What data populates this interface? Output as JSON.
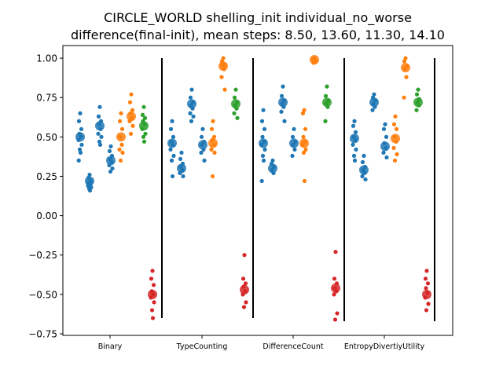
{
  "chart_data": {
    "type": "scatter",
    "title_lines": [
      "CIRCLE_WORLD shelling_init individual_no_worse",
      "difference(final-init), mean steps: 8.50, 13.60, 11.30, 14.10"
    ],
    "xlabel": "",
    "ylabel": "",
    "ylim": [
      -0.76,
      1.08
    ],
    "yticks": [
      -0.75,
      -0.5,
      -0.25,
      0.0,
      0.25,
      0.5,
      0.75,
      1.0
    ],
    "ytick_labels": [
      "−0.75",
      "−0.50",
      "−0.25",
      "0.00",
      "0.25",
      "0.50",
      "0.75",
      "1.00"
    ],
    "categories": [
      "Binary",
      "TypeCounting",
      "DifferenceCount",
      "EntropyDivertiyUtility"
    ],
    "colors": {
      "blue": "#1f77b4",
      "orange": "#ff7f0e",
      "green": "#2ca02c",
      "red": "#d62728"
    },
    "series": [
      {
        "category": "Binary",
        "strips": [
          {
            "color": "blue",
            "mean": 0.5,
            "points": [
              0.65,
              0.6,
              0.55,
              0.52,
              0.5,
              0.48,
              0.45,
              0.42,
              0.4,
              0.35
            ]
          },
          {
            "color": "blue",
            "mean": 0.22,
            "points": [
              0.26,
              0.24,
              0.22,
              0.21,
              0.2,
              0.19,
              0.18,
              0.17,
              0.16
            ]
          },
          {
            "color": "blue",
            "mean": 0.57,
            "points": [
              0.69,
              0.63,
              0.6,
              0.58,
              0.55,
              0.52,
              0.5,
              0.47,
              0.45
            ]
          },
          {
            "color": "blue",
            "mean": 0.35,
            "points": [
              0.44,
              0.41,
              0.38,
              0.36,
              0.34,
              0.32,
              0.3,
              0.28
            ]
          },
          {
            "color": "orange",
            "mean": 0.5,
            "points": [
              0.65,
              0.6,
              0.55,
              0.5,
              0.45,
              0.42,
              0.4,
              0.35
            ]
          },
          {
            "color": "orange",
            "mean": 0.63,
            "points": [
              0.77,
              0.72,
              0.67,
              0.65,
              0.62,
              0.6,
              0.57,
              0.52
            ]
          },
          {
            "color": "green",
            "mean": 0.57,
            "points": [
              0.69,
              0.64,
              0.62,
              0.6,
              0.58,
              0.55,
              0.52,
              0.5,
              0.47
            ]
          },
          {
            "color": "red",
            "mean": -0.5,
            "points": [
              -0.35,
              -0.4,
              -0.44,
              -0.48,
              -0.5,
              -0.52,
              -0.55,
              -0.6,
              -0.65
            ]
          }
        ]
      },
      {
        "category": "TypeCounting",
        "strips": [
          {
            "color": "blue",
            "mean": 0.46,
            "points": [
              0.6,
              0.55,
              0.5,
              0.47,
              0.45,
              0.42,
              0.38,
              0.35,
              0.25
            ]
          },
          {
            "color": "blue",
            "mean": 0.3,
            "points": [
              0.4,
              0.36,
              0.33,
              0.31,
              0.29,
              0.27,
              0.25
            ]
          },
          {
            "color": "blue",
            "mean": 0.71,
            "points": [
              0.8,
              0.75,
              0.72,
              0.7,
              0.68,
              0.65,
              0.63,
              0.6
            ]
          },
          {
            "color": "blue",
            "mean": 0.45,
            "points": [
              0.55,
              0.5,
              0.47,
              0.45,
              0.42,
              0.4,
              0.35
            ]
          },
          {
            "color": "orange",
            "mean": 0.46,
            "points": [
              0.6,
              0.55,
              0.5,
              0.48,
              0.45,
              0.42,
              0.4,
              0.25
            ]
          },
          {
            "color": "orange",
            "mean": 0.95,
            "points": [
              1.0,
              0.98,
              0.96,
              0.95,
              0.93,
              0.88,
              0.8
            ]
          },
          {
            "color": "green",
            "mean": 0.71,
            "points": [
              0.8,
              0.75,
              0.72,
              0.7,
              0.68,
              0.65,
              0.62
            ]
          },
          {
            "color": "red",
            "mean": -0.47,
            "points": [
              -0.25,
              -0.4,
              -0.43,
              -0.45,
              -0.48,
              -0.5,
              -0.55,
              -0.58
            ]
          }
        ]
      },
      {
        "category": "DifferenceCount",
        "strips": [
          {
            "color": "blue",
            "mean": 0.46,
            "points": [
              0.67,
              0.6,
              0.55,
              0.5,
              0.47,
              0.45,
              0.42,
              0.38,
              0.35,
              0.22
            ]
          },
          {
            "color": "blue",
            "mean": 0.3,
            "points": [
              0.35,
              0.33,
              0.31,
              0.29,
              0.27
            ]
          },
          {
            "color": "blue",
            "mean": 0.72,
            "points": [
              0.82,
              0.76,
              0.73,
              0.71,
              0.69,
              0.66,
              0.6
            ]
          },
          {
            "color": "blue",
            "mean": 0.46,
            "points": [
              0.55,
              0.5,
              0.47,
              0.45,
              0.42,
              0.38
            ]
          },
          {
            "color": "orange",
            "mean": 0.46,
            "points": [
              0.67,
              0.65,
              0.55,
              0.5,
              0.47,
              0.45,
              0.42,
              0.4,
              0.22
            ]
          },
          {
            "color": "orange",
            "mean": 0.99,
            "points": [
              1.0,
              0.99,
              0.98,
              0.97
            ]
          },
          {
            "color": "green",
            "mean": 0.72,
            "points": [
              0.82,
              0.76,
              0.73,
              0.71,
              0.69,
              0.6
            ]
          },
          {
            "color": "red",
            "mean": -0.46,
            "points": [
              -0.23,
              -0.4,
              -0.43,
              -0.46,
              -0.48,
              -0.5,
              -0.62,
              -0.66
            ]
          }
        ]
      },
      {
        "category": "EntropyDivertiyUtility",
        "strips": [
          {
            "color": "blue",
            "mean": 0.49,
            "points": [
              0.6,
              0.57,
              0.53,
              0.5,
              0.48,
              0.45,
              0.42,
              0.38,
              0.35
            ]
          },
          {
            "color": "blue",
            "mean": 0.29,
            "points": [
              0.38,
              0.34,
              0.31,
              0.29,
              0.27,
              0.25,
              0.23
            ]
          },
          {
            "color": "blue",
            "mean": 0.72,
            "points": [
              0.77,
              0.75,
              0.73,
              0.71,
              0.69,
              0.67
            ]
          },
          {
            "color": "blue",
            "mean": 0.44,
            "points": [
              0.58,
              0.55,
              0.5,
              0.46,
              0.43,
              0.4,
              0.37
            ]
          },
          {
            "color": "orange",
            "mean": 0.49,
            "points": [
              0.63,
              0.58,
              0.55,
              0.5,
              0.47,
              0.43,
              0.39,
              0.35
            ]
          },
          {
            "color": "orange",
            "mean": 0.94,
            "points": [
              1.0,
              0.98,
              0.95,
              0.93,
              0.88,
              0.75
            ]
          },
          {
            "color": "green",
            "mean": 0.72,
            "points": [
              0.8,
              0.77,
              0.74,
              0.72,
              0.7,
              0.67
            ]
          },
          {
            "color": "red",
            "mean": -0.5,
            "points": [
              -0.35,
              -0.4,
              -0.43,
              -0.46,
              -0.49,
              -0.52,
              -0.56,
              -0.6
            ]
          }
        ]
      }
    ],
    "dividers": [
      {
        "ymin": -0.65,
        "ymax": 1.0
      },
      {
        "ymin": -0.65,
        "ymax": 1.0
      },
      {
        "ymin": -0.67,
        "ymax": 1.0
      },
      {
        "ymin": -0.67,
        "ymax": 1.0
      }
    ],
    "grid": false,
    "legend": "none"
  }
}
